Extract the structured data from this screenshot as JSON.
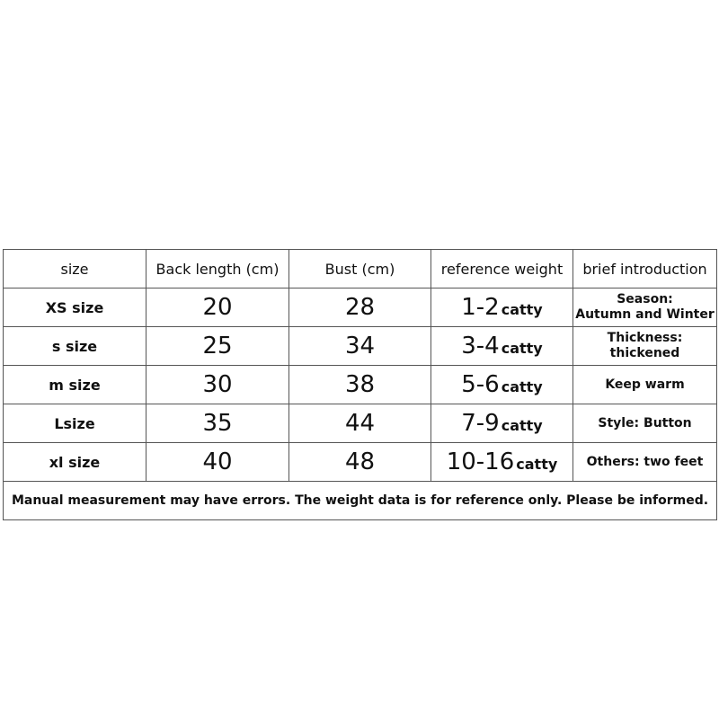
{
  "headers": [
    "size",
    "Back length (cm)",
    "Bust (cm)",
    "reference weight",
    "brief introduction"
  ],
  "rows": [
    {
      "size": "XS size",
      "back_length": "20",
      "bust": "28",
      "weight": "1-2",
      "unit": "catty",
      "intro_line1": "Season:",
      "intro_line2": "Autumn and Winter"
    },
    {
      "size": "s size",
      "back_length": "25",
      "bust": "34",
      "weight": "3-4",
      "unit": "catty",
      "intro_line1": "Thickness: thickened",
      "intro_line2": ""
    },
    {
      "size": "m size",
      "back_length": "30",
      "bust": "38",
      "weight": "5-6",
      "unit": "catty",
      "intro_line1": "Keep warm",
      "intro_line2": ""
    },
    {
      "size": "Lsize",
      "back_length": "35",
      "bust": "44",
      "weight": "7-9",
      "unit": "catty",
      "intro_line1": "Style: Button",
      "intro_line2": ""
    },
    {
      "size": "xl size",
      "back_length": "40",
      "bust": "48",
      "weight": "10-16",
      "unit": "catty",
      "intro_line1": "Others: two feet",
      "intro_line2": ""
    }
  ],
  "note": "Manual measurement may have errors. The weight data is for reference only. Please be informed."
}
